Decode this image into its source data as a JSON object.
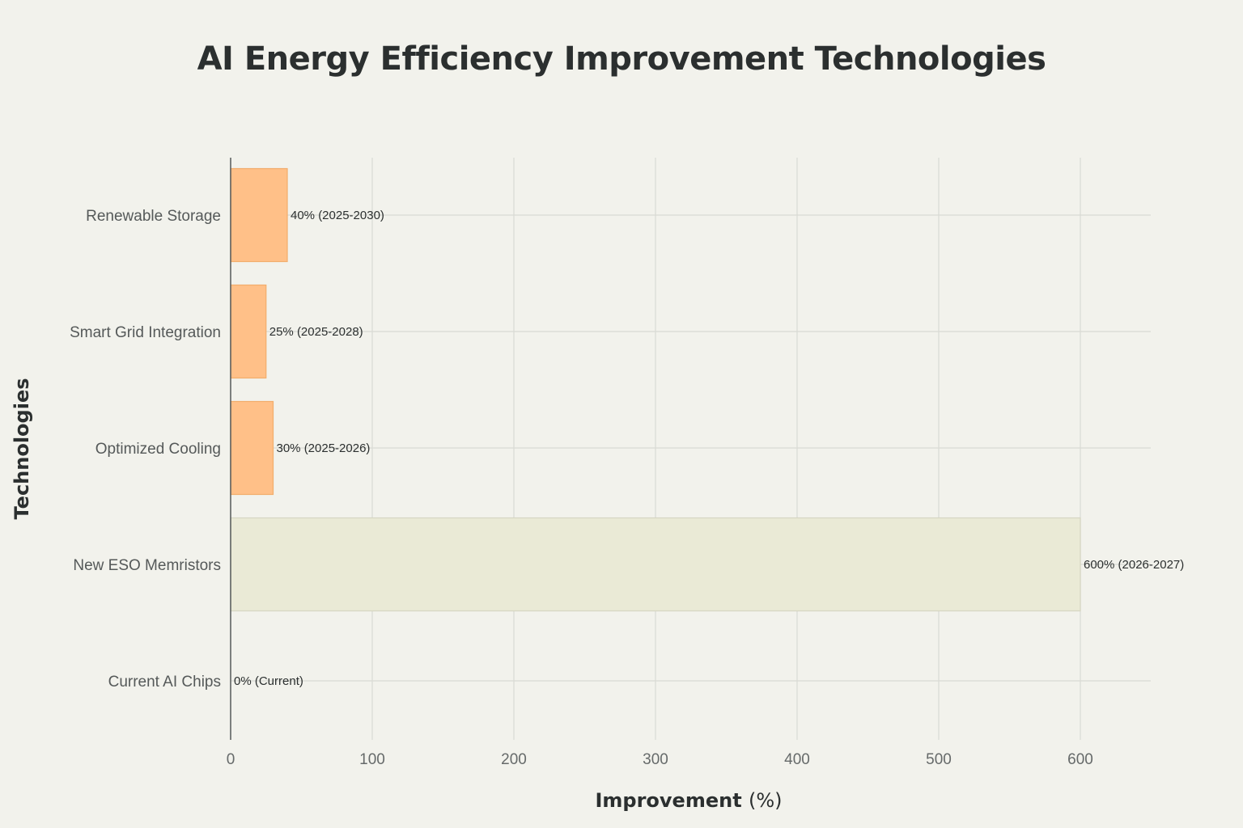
{
  "chart_data": {
    "type": "bar",
    "orientation": "horizontal",
    "title": "AI Energy Efficiency Improvement Technologies",
    "xlabel": "Improvement",
    "xlabel_unit": "(%)",
    "ylabel": "Technologies",
    "xlim": [
      0,
      650
    ],
    "x_ticks": [
      0,
      100,
      200,
      300,
      400,
      500,
      600
    ],
    "grid": true,
    "categories": [
      "Current AI Chips",
      "New ESO Memristors",
      "Optimized Cooling",
      "Smart Grid Integration",
      "Renewable Storage"
    ],
    "values": [
      0,
      600,
      30,
      25,
      40
    ],
    "data_labels": [
      "0% (Current)",
      "600% (2026-2027)",
      "30% (2025-2026)",
      "25% (2025-2028)",
      "40% (2025-2030)"
    ],
    "bar_colors": [
      "#ffc088",
      "#eaead6",
      "#ffc088",
      "#ffc088",
      "#ffc088"
    ],
    "bar_stroke_colors": [
      "#f2ad6c",
      "#d6d6c2",
      "#f2ad6c",
      "#f2ad6c",
      "#f2ad6c"
    ]
  }
}
